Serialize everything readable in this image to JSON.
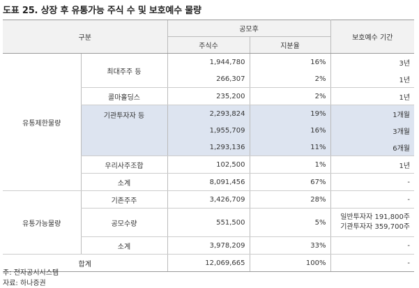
{
  "title": "도표 25. 상장 후 유통가능 주식 수 및 보호예수 물량",
  "headers": {
    "category": "구분",
    "after_ipo": "공모후",
    "shares": "주식수",
    "stake": "지분율",
    "lockup": "보호예수 기간"
  },
  "groups": {
    "restricted": "유통제한물량",
    "tradable": "유통가능물량",
    "total": "합계"
  },
  "rows": [
    {
      "sub": "최대주주 등",
      "shares": "1,944,780",
      "stake": "16%",
      "lockup": "3년"
    },
    {
      "sub": "",
      "shares": "266,307",
      "stake": "2%",
      "lockup": "1년"
    },
    {
      "sub": "콜마홀딩스",
      "shares": "235,200",
      "stake": "2%",
      "lockup": "1년"
    },
    {
      "sub": "기관투자자 등",
      "shares": "2,293,824",
      "stake": "19%",
      "lockup": "1개월"
    },
    {
      "sub": "",
      "shares": "1,955,709",
      "stake": "16%",
      "lockup": "3개월"
    },
    {
      "sub": "",
      "shares": "1,293,136",
      "stake": "11%",
      "lockup": "6개월"
    },
    {
      "sub": "우리사주조합",
      "shares": "102,500",
      "stake": "1%",
      "lockup": "1년"
    },
    {
      "sub": "소계",
      "shares": "8,091,456",
      "stake": "67%",
      "lockup": "-"
    },
    {
      "sub": "기존주주",
      "shares": "3,426,709",
      "stake": "28%",
      "lockup": "-"
    },
    {
      "sub": "공모수량",
      "shares": "551,500",
      "stake": "5%",
      "lockup_line1": "일반투자자 191,800주",
      "lockup_line2": "기관투자자 359,700주"
    },
    {
      "sub": "소계",
      "shares": "3,978,209",
      "stake": "33%",
      "lockup": "-"
    },
    {
      "sub": "",
      "shares": "12,069,665",
      "stake": "100%",
      "lockup": "-"
    }
  ],
  "notes": {
    "source": "주: 전자공시시스템",
    "data": "자료: 하나증권"
  }
}
